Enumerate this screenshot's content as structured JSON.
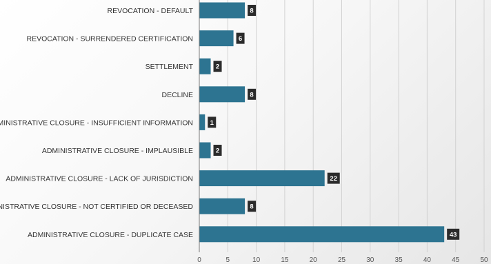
{
  "chart_data": {
    "type": "bar",
    "orientation": "horizontal",
    "categories": [
      "REVOCATION - DEFAULT",
      "REVOCATION - SURRENDERED CERTIFICATION",
      "SETTLEMENT",
      "DECLINE",
      "ADMINISTRATIVE CLOSURE - INSUFFICIENT INFORMATION",
      "ADMINISTRATIVE CLOSURE - IMPLAUSIBLE",
      "ADMINISTRATIVE CLOSURE - LACK OF JURISDICTION",
      "ADMINISTRATIVE CLOSURE - NOT CERTIFIED OR DECEASED",
      "ADMINISTRATIVE CLOSURE - DUPLICATE CASE"
    ],
    "values": [
      8,
      6,
      2,
      8,
      1,
      2,
      22,
      8,
      43
    ],
    "xlim": [
      0,
      50
    ],
    "xticks": [
      0,
      5,
      10,
      15,
      20,
      25,
      30,
      35,
      40,
      45,
      50
    ],
    "grid": "vertical",
    "legend": "none",
    "data_labels": true,
    "colors": {
      "bar": "#2d7491",
      "label_bg": "#2b2b2b",
      "label_text": "#ffffff",
      "grid": "#d2d2d2",
      "axis": "#7a7a7a"
    }
  }
}
